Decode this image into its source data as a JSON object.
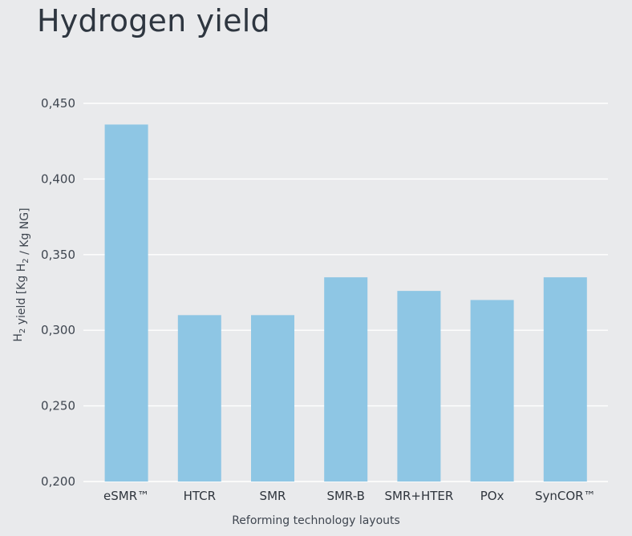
{
  "chart_data": {
    "type": "bar",
    "title": "Hydrogen yield",
    "xlabel": "Reforming technology layouts",
    "ylabel": "H₂ yield [Kg H₂ / Kg NG]",
    "categories": [
      "eSMR™",
      "HTCR",
      "SMR",
      "SMR-B",
      "SMR+HTER",
      "POx",
      "SynCOR™"
    ],
    "values": [
      0.436,
      0.31,
      0.31,
      0.335,
      0.326,
      0.32,
      0.335
    ],
    "ylim": [
      0.2,
      0.45
    ],
    "yticks": [
      0.2,
      0.25,
      0.3,
      0.35,
      0.4,
      0.45
    ],
    "ytick_labels": [
      "0,200",
      "0,250",
      "0,300",
      "0,350",
      "0,400",
      "0,450"
    ],
    "grid": true,
    "bar_color": "#8ec6e4",
    "grid_color": "#ffffff"
  }
}
